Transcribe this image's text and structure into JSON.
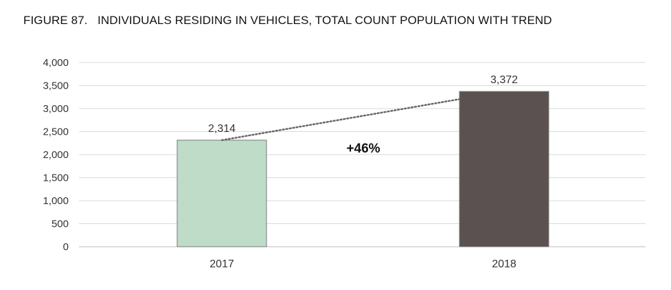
{
  "chart_data": {
    "type": "bar",
    "title": "FIGURE 87.   INDIVIDUALS RESIDING IN VEHICLES, TOTAL COUNT POPULATION WITH TREND",
    "categories": [
      "2017",
      "2018"
    ],
    "values": [
      2314,
      3372
    ],
    "value_labels": [
      "2,314",
      "3,372"
    ],
    "colors": [
      "#bfdcc9",
      "#5a5150"
    ],
    "ylim": [
      0,
      4000
    ],
    "yticks": [
      0,
      500,
      1000,
      1500,
      2000,
      2500,
      3000,
      3500,
      4000
    ],
    "ytick_labels": [
      "0",
      "500",
      "1,000",
      "1,500",
      "2,000",
      "2,500",
      "3,000",
      "3,500",
      "4,000"
    ],
    "grid": true,
    "trend_line": "dotted",
    "annotation": "+46%",
    "xlabel": "",
    "ylabel": ""
  }
}
